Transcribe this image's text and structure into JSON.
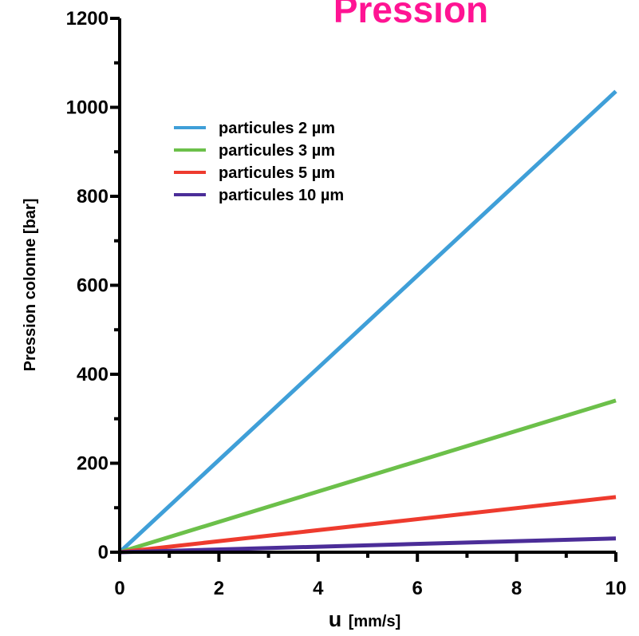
{
  "chart_data": {
    "type": "line",
    "title": "Pression",
    "xlabel_symbol": "u",
    "xlabel_unit": "[mm/s]",
    "ylabel": "Pression  colonne [bar]",
    "xlim": [
      0,
      10
    ],
    "ylim": [
      0,
      1200
    ],
    "x_ticks": [
      0,
      2,
      4,
      6,
      8,
      10
    ],
    "y_ticks": [
      0,
      200,
      400,
      600,
      800,
      1000,
      1200
    ],
    "grid": false,
    "legend_position": "top-left",
    "series": [
      {
        "name": "particules 2 µm",
        "color": "#3f9fd8",
        "x": [
          0,
          10
        ],
        "y": [
          0,
          1036
        ]
      },
      {
        "name": "particules 3 µm",
        "color": "#6cc04a",
        "x": [
          0,
          10
        ],
        "y": [
          0,
          341
        ]
      },
      {
        "name": "particules 5 µm",
        "color": "#ee3b2e",
        "x": [
          0,
          10
        ],
        "y": [
          0,
          124
        ]
      },
      {
        "name": "particules 10 µm",
        "color": "#4b2d98",
        "x": [
          0,
          10
        ],
        "y": [
          0,
          31
        ]
      }
    ]
  }
}
